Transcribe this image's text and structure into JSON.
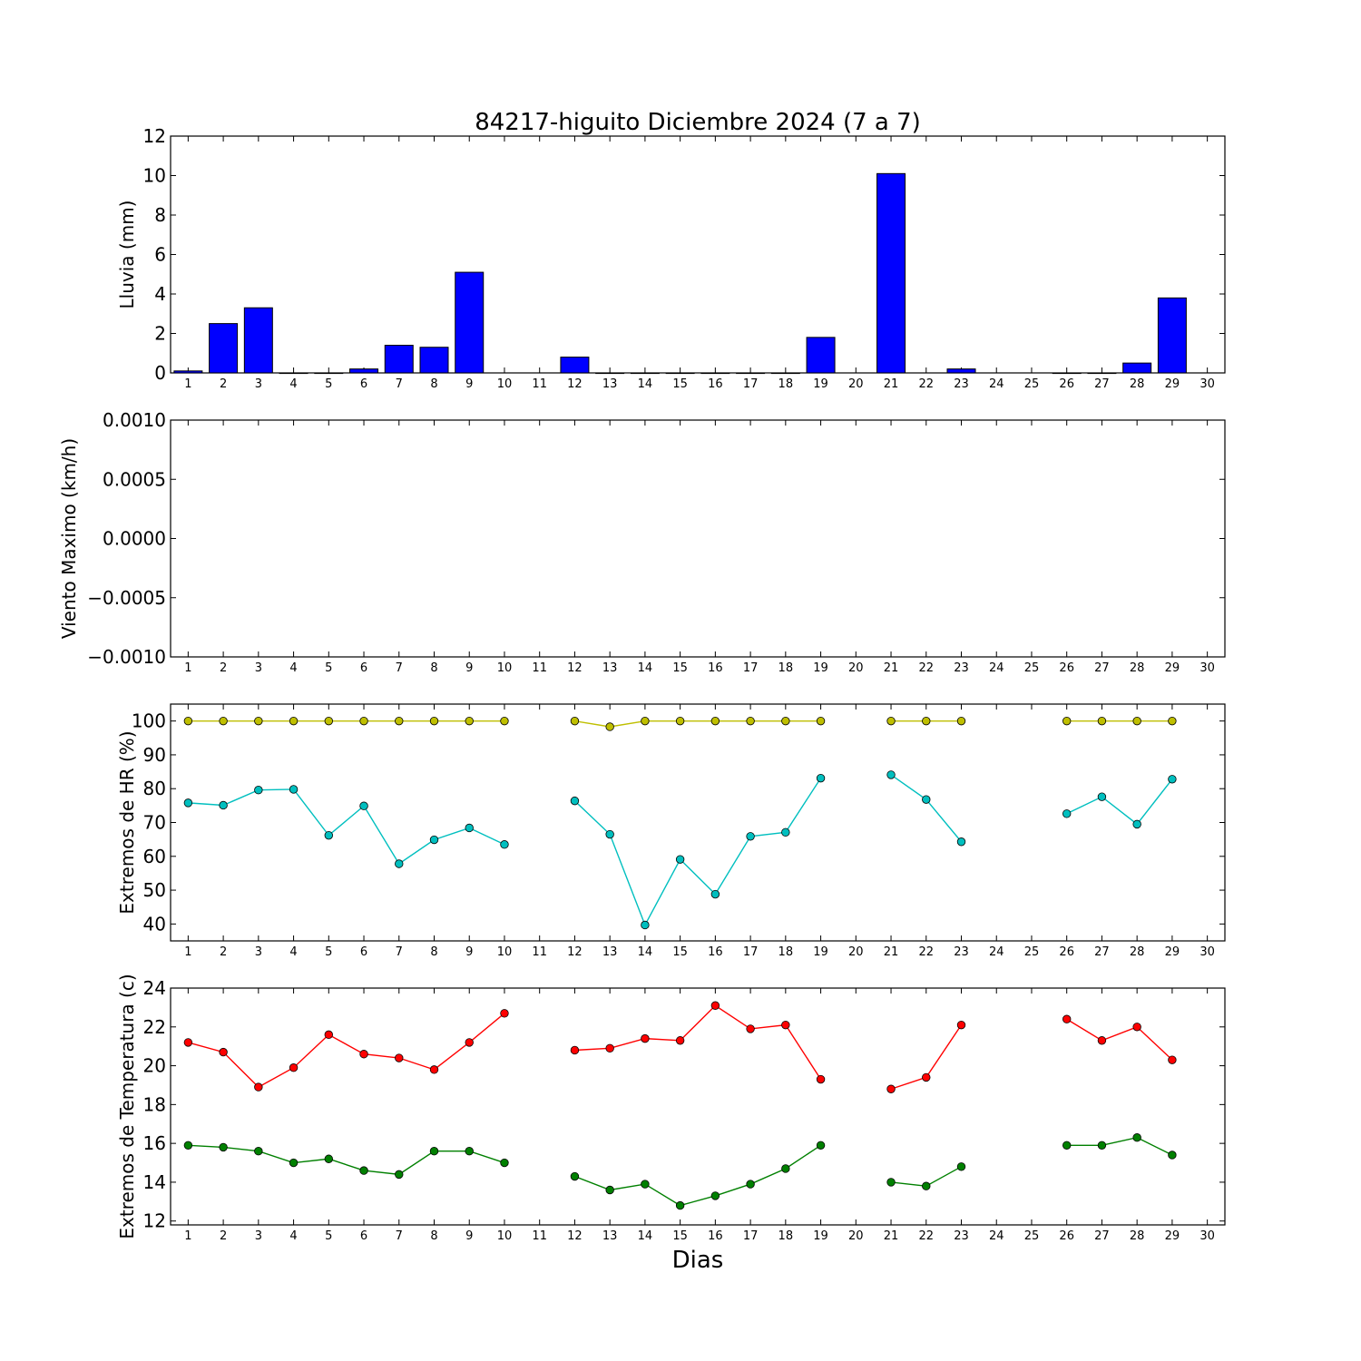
{
  "title": "84217-higuito Diciembre 2024  (7 a 7)",
  "xlabel": "Dias",
  "chart_data": [
    {
      "type": "bar",
      "ylabel": "Lluvia (mm)",
      "x": [
        1,
        2,
        3,
        4,
        5,
        6,
        7,
        8,
        9,
        10,
        11,
        12,
        13,
        14,
        15,
        16,
        17,
        18,
        19,
        20,
        21,
        22,
        23,
        24,
        25,
        26,
        27,
        28,
        29,
        30
      ],
      "values": [
        0.1,
        2.5,
        3.3,
        0,
        0,
        0.2,
        1.4,
        1.3,
        5.1,
        null,
        null,
        0.8,
        0,
        0,
        0,
        0,
        0,
        0,
        1.8,
        null,
        10.1,
        null,
        0.2,
        null,
        null,
        0,
        0,
        0.5,
        3.8,
        null
      ],
      "ylim": [
        0,
        12
      ],
      "yticks": [
        0,
        2,
        4,
        6,
        8,
        10,
        12
      ],
      "xlim": [
        0.5,
        30.5
      ],
      "color": "#0000ff"
    },
    {
      "type": "line",
      "ylabel": "Viento Maximo (km/h)",
      "x": [
        1,
        2,
        3,
        4,
        5,
        6,
        7,
        8,
        9,
        10,
        11,
        12,
        13,
        14,
        15,
        16,
        17,
        18,
        19,
        20,
        21,
        22,
        23,
        24,
        25,
        26,
        27,
        28,
        29,
        30
      ],
      "series": [],
      "ylim": [
        -0.001,
        0.001
      ],
      "yticks": [
        "−0.0010",
        "−0.0005",
        "0.0000",
        "0.0005",
        "0.0010"
      ],
      "xlim": [
        0.5,
        30.5
      ]
    },
    {
      "type": "line",
      "ylabel": "Extremos de HR (%)",
      "x": [
        1,
        2,
        3,
        4,
        5,
        6,
        7,
        8,
        9,
        10,
        11,
        12,
        13,
        14,
        15,
        16,
        17,
        18,
        19,
        20,
        21,
        22,
        23,
        24,
        25,
        26,
        27,
        28,
        29,
        30
      ],
      "series": [
        {
          "values": [
            100,
            100,
            100,
            100,
            100,
            100,
            100,
            100,
            100,
            100,
            null,
            100,
            98.3,
            100,
            100,
            100,
            100,
            100,
            100,
            null,
            100,
            100,
            100,
            null,
            null,
            100,
            100,
            100,
            100,
            null
          ],
          "color": "#bfbf00"
        },
        {
          "values": [
            75.8,
            75.1,
            79.6,
            79.8,
            66.2,
            74.9,
            57.8,
            64.9,
            68.4,
            63.5,
            null,
            76.4,
            66.5,
            39.7,
            59.1,
            48.8,
            65.9,
            67.1,
            83.1,
            null,
            84.1,
            76.8,
            64.3,
            null,
            null,
            72.6,
            77.6,
            69.5,
            82.8,
            null
          ],
          "color": "#00bfbf"
        }
      ],
      "ylim": [
        35,
        105
      ],
      "yticks": [
        40,
        50,
        60,
        70,
        80,
        90,
        100
      ],
      "xlim": [
        0.5,
        30.5
      ]
    },
    {
      "type": "line",
      "ylabel": "Extremos de Temperatura (c)",
      "x": [
        1,
        2,
        3,
        4,
        5,
        6,
        7,
        8,
        9,
        10,
        11,
        12,
        13,
        14,
        15,
        16,
        17,
        18,
        19,
        20,
        21,
        22,
        23,
        24,
        25,
        26,
        27,
        28,
        29,
        30
      ],
      "series": [
        {
          "values": [
            21.2,
            20.7,
            18.9,
            19.9,
            21.6,
            20.6,
            20.4,
            19.8,
            21.2,
            22.7,
            null,
            20.8,
            20.9,
            21.4,
            21.3,
            23.1,
            21.9,
            22.1,
            19.3,
            null,
            18.8,
            19.4,
            22.1,
            null,
            null,
            22.4,
            21.3,
            22.0,
            20.3,
            null
          ],
          "color": "#ff0000"
        },
        {
          "values": [
            15.9,
            15.8,
            15.6,
            15.0,
            15.2,
            14.6,
            14.4,
            15.6,
            15.6,
            15.0,
            null,
            14.3,
            13.6,
            13.9,
            12.8,
            13.3,
            13.9,
            14.7,
            15.9,
            null,
            14.0,
            13.8,
            14.8,
            null,
            null,
            15.9,
            15.9,
            16.3,
            15.4,
            null
          ],
          "color": "#008000"
        }
      ],
      "ylim": [
        11.8,
        24
      ],
      "yticks": [
        12,
        14,
        16,
        18,
        20,
        22,
        24
      ],
      "xlim": [
        0.5,
        30.5
      ]
    }
  ]
}
